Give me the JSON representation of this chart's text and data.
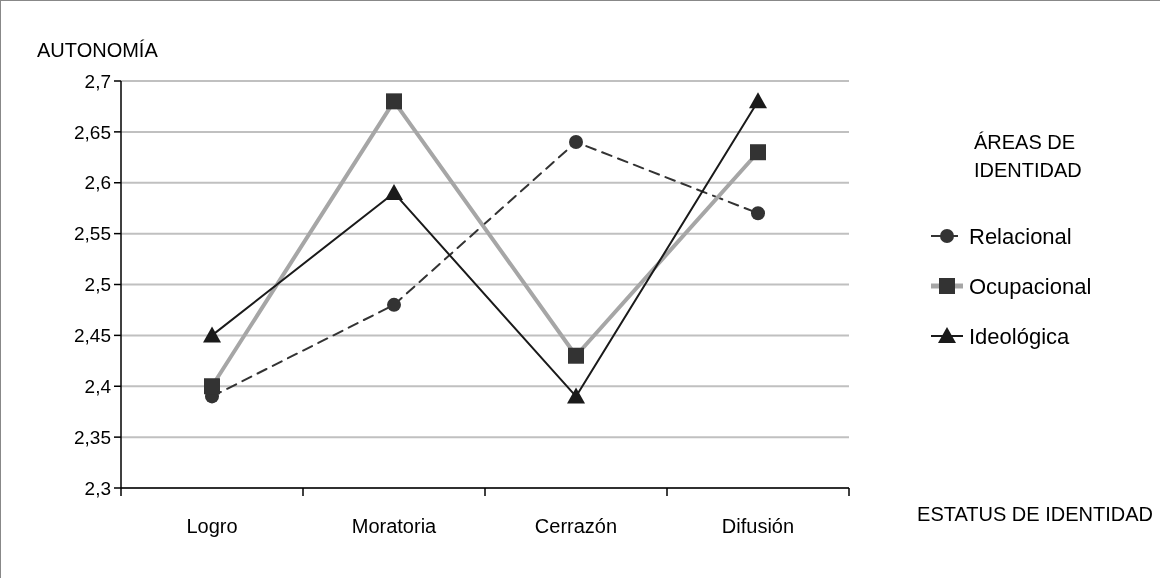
{
  "chart_data": {
    "type": "line",
    "ylabel": "AUTONOMÍA",
    "xlabel": "ESTATUS DE IDENTIDAD",
    "legend_title": "ÁREAS DE IDENTIDAD",
    "categories": [
      "Logro",
      "Moratoria",
      "Cerrazón",
      "Difusión"
    ],
    "series": [
      {
        "name": "Relacional",
        "color": "#333333",
        "values": [
          2.39,
          2.48,
          2.64,
          2.57
        ],
        "marker": "circle",
        "line_style": "dashed"
      },
      {
        "name": "Ocupacional",
        "color": "#a6a6a6",
        "values": [
          2.4,
          2.68,
          2.43,
          2.63
        ],
        "marker": "square",
        "line_style": "solid"
      },
      {
        "name": "Ideológica",
        "color": "#1a1a1a",
        "values": [
          2.45,
          2.59,
          2.39,
          2.68
        ],
        "marker": "triangle",
        "line_style": "solid"
      }
    ],
    "ylim": [
      2.3,
      2.7
    ],
    "yticks": [
      {
        "value": 2.3,
        "label": "2,3"
      },
      {
        "value": 2.35,
        "label": "2,35"
      },
      {
        "value": 2.4,
        "label": "2,4"
      },
      {
        "value": 2.45,
        "label": "2,45"
      },
      {
        "value": 2.5,
        "label": "2,5"
      },
      {
        "value": 2.55,
        "label": "2,55"
      },
      {
        "value": 2.6,
        "label": "2,6"
      },
      {
        "value": 2.65,
        "label": "2,65"
      },
      {
        "value": 2.7,
        "label": "2,7"
      }
    ],
    "grid": "y",
    "legend": "right"
  }
}
